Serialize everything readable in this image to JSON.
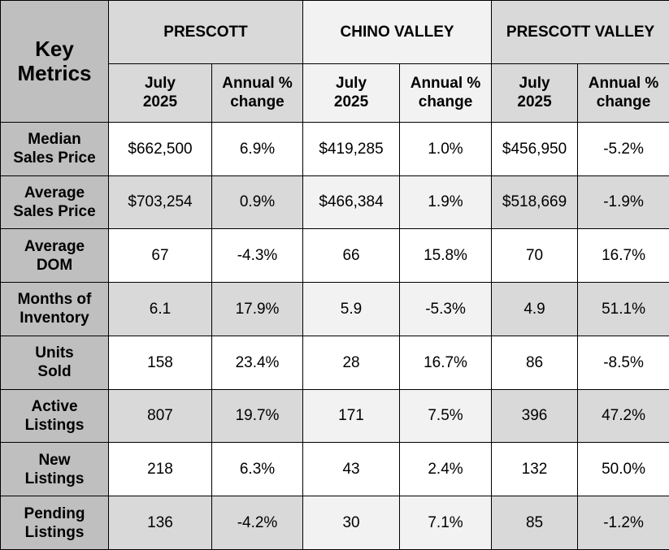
{
  "header": {
    "key_line1": "Key",
    "key_line2": "Metrics",
    "groups": [
      "PRESCOTT",
      "CHINO VALLEY",
      "PRESCOTT VALLEY"
    ],
    "sub_month_line1": "July",
    "sub_month_line2": "2025",
    "sub_change_line1": "Annual %",
    "sub_change_line2": "change"
  },
  "rows": [
    {
      "label1": "Median",
      "label2": "Sales Price",
      "values": [
        "$662,500",
        "6.9%",
        "$419,285",
        "1.0%",
        "$456,950",
        "-5.2%"
      ]
    },
    {
      "label1": "Average",
      "label2": "Sales Price",
      "values": [
        "$703,254",
        "0.9%",
        "$466,384",
        "1.9%",
        "$518,669",
        "-1.9%"
      ]
    },
    {
      "label1": "Average",
      "label2": "DOM",
      "values": [
        "67",
        "-4.3%",
        "66",
        "15.8%",
        "70",
        "16.7%"
      ]
    },
    {
      "label1": "Months of",
      "label2": "Inventory",
      "values": [
        "6.1",
        "17.9%",
        "5.9",
        "-5.3%",
        "4.9",
        "51.1%"
      ]
    },
    {
      "label1": "Units",
      "label2": "Sold",
      "values": [
        "158",
        "23.4%",
        "28",
        "16.7%",
        "86",
        "-8.5%"
      ]
    },
    {
      "label1": "Active",
      "label2": "Listings",
      "values": [
        "807",
        "19.7%",
        "171",
        "7.5%",
        "396",
        "47.2%"
      ]
    },
    {
      "label1": "New",
      "label2": "Listings",
      "values": [
        "218",
        "6.3%",
        "43",
        "2.4%",
        "132",
        "50.0%"
      ]
    },
    {
      "label1": "Pending",
      "label2": "Listings",
      "values": [
        "136",
        "-4.2%",
        "30",
        "7.1%",
        "85",
        "-1.2%"
      ]
    }
  ]
}
